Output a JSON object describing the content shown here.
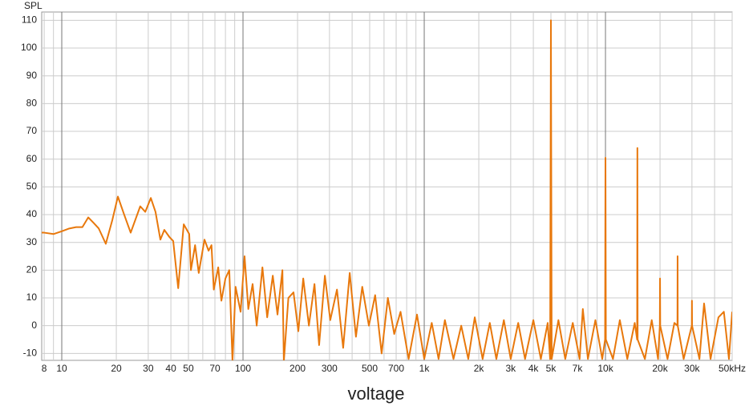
{
  "chart_data": {
    "type": "line",
    "y_label": "SPL",
    "x_label": "voltage",
    "xscale": "log",
    "grid": true,
    "xlim": [
      7.75,
      50000
    ],
    "ylim": [
      -12.5,
      113
    ],
    "xticks": [
      8,
      10,
      20,
      30,
      40,
      50,
      70,
      100,
      200,
      300,
      500,
      700,
      {
        "value": 1000,
        "label": "1k"
      },
      {
        "value": 2000,
        "label": "2k"
      },
      {
        "value": 3000,
        "label": "3k"
      },
      {
        "value": 4000,
        "label": "4k"
      },
      {
        "value": 5000,
        "label": "5k"
      },
      {
        "value": 7000,
        "label": "7k"
      },
      {
        "value": 10000,
        "label": "10k"
      },
      {
        "value": 20000,
        "label": "20k"
      },
      {
        "value": 30000,
        "label": "30k"
      },
      {
        "value": 50000,
        "label": "50kHz"
      }
    ],
    "xminor": [
      9,
      60,
      80,
      90,
      400,
      600,
      800,
      900,
      6000,
      8000,
      9000,
      40000
    ],
    "yticks": [
      -10,
      0,
      10,
      20,
      30,
      40,
      50,
      60,
      70,
      80,
      90,
      100,
      110
    ],
    "x": [
      7.75,
      8,
      9,
      10,
      11,
      12,
      13,
      14,
      15,
      16,
      17.5,
      19,
      20.4,
      22.1,
      24,
      27.1,
      28.9,
      31,
      32.9,
      35,
      36.8,
      39.2,
      41.2,
      43.9,
      47.1,
      50.5,
      51.6,
      54.4,
      57,
      61.3,
      64.6,
      67,
      69,
      73,
      76,
      80,
      84,
      87.5,
      91,
      97,
      102,
      107,
      113,
      119,
      128,
      136,
      146,
      155,
      165,
      168,
      178,
      190,
      202,
      215,
      231,
      248,
      263,
      283,
      303,
      330,
      357,
      388,
      420,
      455,
      495,
      536,
      582,
      630,
      683,
      740,
      820,
      912,
      1000,
      1100,
      1200,
      1300,
      1450,
      1600,
      1750,
      1900,
      2100,
      2300,
      2500,
      2750,
      3000,
      3300,
      3600,
      4000,
      4400,
      4800,
      4950,
      5000,
      5050,
      5500,
      6000,
      6600,
      7200,
      7500,
      8000,
      8800,
      9600,
      9950,
      10000,
      10050,
      11000,
      12000,
      13200,
      14500,
      14950,
      15000,
      15050,
      16500,
      18000,
      19500,
      19950,
      20000,
      20050,
      22000,
      24000,
      24950,
      25000,
      25050,
      27000,
      29950,
      30000,
      30050,
      33000,
      35000,
      38000,
      42000,
      45000,
      48000,
      50000
    ],
    "series": [
      {
        "color": "#e8780c",
        "values": [
          33.5,
          33.5,
          33,
          34,
          35,
          35.5,
          35.5,
          39,
          37,
          35,
          29.5,
          38,
          46.5,
          40,
          33.5,
          43,
          41,
          46,
          41,
          31,
          34.5,
          32,
          30.5,
          13.5,
          36.5,
          33,
          20,
          29,
          19,
          31,
          27,
          29,
          13,
          21,
          9,
          17,
          20,
          -13,
          14,
          5,
          25,
          6,
          15,
          0,
          21,
          3,
          18,
          4,
          20,
          -13,
          10,
          12,
          -2,
          17,
          0,
          15,
          -7,
          18,
          2,
          13,
          -8,
          19,
          -4,
          14,
          0,
          11,
          -10,
          10,
          -3,
          5,
          -12,
          4,
          -12,
          1,
          -12,
          2,
          -12,
          0,
          -12,
          3,
          -12,
          1,
          -12,
          2,
          -12,
          1,
          -12,
          2,
          -12,
          1,
          -12,
          110,
          -12,
          2,
          -12,
          1,
          -12,
          6,
          -12,
          2,
          -12,
          -5,
          60.5,
          -5,
          -12,
          2,
          -12,
          1,
          -5,
          64,
          -5,
          -12,
          2,
          -12,
          0,
          17,
          0,
          -12,
          1,
          0,
          25,
          0,
          -12,
          0,
          9,
          0,
          -12,
          8,
          -12,
          3,
          5,
          -12,
          5
        ]
      }
    ]
  }
}
